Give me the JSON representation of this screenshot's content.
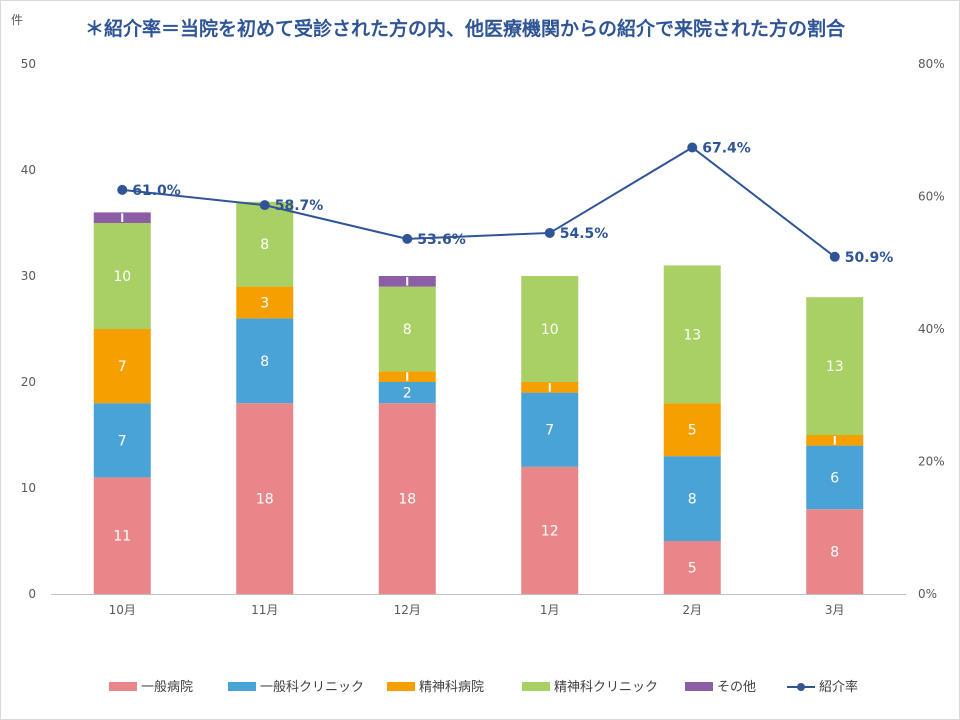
{
  "chart_data": {
    "type": "bar",
    "title": "＊紹介率＝当院を初めて受診された方の内、他医療機関からの紹介で来院された方の割合",
    "y_unit_label": "件",
    "categories": [
      "10月",
      "11月",
      "12月",
      "1月",
      "2月",
      "3月"
    ],
    "ylim": [
      0,
      50
    ],
    "y_ticks": [
      "0",
      "10",
      "20",
      "30",
      "40",
      "50"
    ],
    "y2lim": [
      0,
      80
    ],
    "y2_ticks": [
      "0%",
      "20%",
      "40%",
      "60%",
      "80%"
    ],
    "series": [
      {
        "name": "一般病院",
        "color": "#e9868a",
        "values": [
          11,
          18,
          18,
          12,
          5,
          8
        ],
        "labels": [
          "11",
          "18",
          "18",
          "12",
          "5",
          "8"
        ]
      },
      {
        "name": "一般科クリニック",
        "color": "#4aa3d7",
        "values": [
          7,
          8,
          2,
          7,
          8,
          6
        ],
        "labels": [
          "7",
          "8",
          "2",
          "7",
          "8",
          "6"
        ]
      },
      {
        "name": "精神科病院",
        "color": "#f5a000",
        "values": [
          7,
          3,
          1,
          1,
          5,
          1
        ],
        "labels": [
          "7",
          "3",
          "1",
          "1",
          "5",
          "1"
        ]
      },
      {
        "name": "精神科クリニック",
        "color": "#a9d064",
        "values": [
          10,
          8,
          8,
          10,
          13,
          13
        ],
        "labels": [
          "10",
          "8",
          "8",
          "10",
          "13",
          "13"
        ]
      },
      {
        "name": "その他",
        "color": "#8c5ea6",
        "values": [
          1,
          0,
          1,
          0,
          0,
          0
        ],
        "labels": [
          "1",
          "",
          "1",
          "",
          "",
          ""
        ]
      }
    ],
    "line_series": {
      "name": "紹介率",
      "color": "#2f5597",
      "axis": "secondary",
      "values": [
        61.0,
        58.7,
        53.6,
        54.5,
        67.4,
        50.9
      ],
      "labels": [
        "61.0%",
        "58.7%",
        "53.6%",
        "54.5%",
        "67.4%",
        "50.9%"
      ]
    },
    "legend_position": "bottom",
    "grid": false
  }
}
